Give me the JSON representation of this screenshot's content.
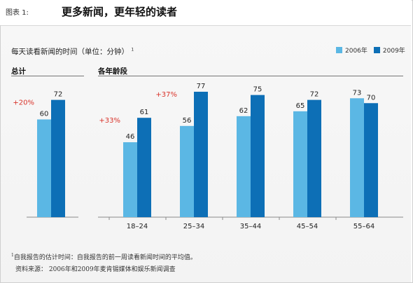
{
  "figure_label": "图表 1:",
  "figure_title": "更多新闻，更年轻的读者",
  "chart_subtitle": "每天读看新闻的时间（单位：分钟）",
  "subtitle_marker": "1",
  "colors": {
    "series_2006": "#5bb7e4",
    "series_2009": "#0d6fb6",
    "change_label": "#d9342b"
  },
  "chart_data": {
    "type": "bar",
    "series": [
      {
        "name": "2006年",
        "color": "#5bb7e4"
      },
      {
        "name": "2009年",
        "color": "#0d6fb6"
      }
    ],
    "panels": [
      {
        "heading": "总计",
        "groups": [
          {
            "category": "",
            "values": [
              60,
              72
            ],
            "change": "+20%"
          }
        ]
      },
      {
        "heading": "各年龄段",
        "groups": [
          {
            "category": "18–24",
            "values": [
              46,
              61
            ],
            "change": "+33%"
          },
          {
            "category": "25–34",
            "values": [
              56,
              77
            ],
            "change": "+37%"
          },
          {
            "category": "35–44",
            "values": [
              62,
              75
            ],
            "change": ""
          },
          {
            "category": "45–54",
            "values": [
              65,
              72
            ],
            "change": ""
          },
          {
            "category": "55–64",
            "values": [
              73,
              70
            ],
            "change": ""
          }
        ]
      }
    ],
    "ylim": [
      0,
      80
    ],
    "grid": false,
    "legend": "top-right"
  },
  "footnotes": [
    {
      "marker": "1",
      "text": "自我报告的估计时间：自我报告的前一周读看新闻时间的平均值。"
    },
    {
      "marker": "",
      "text": "资料来源： 2006年和2009年麦肯锡媒体和娱乐新闻调查"
    }
  ]
}
